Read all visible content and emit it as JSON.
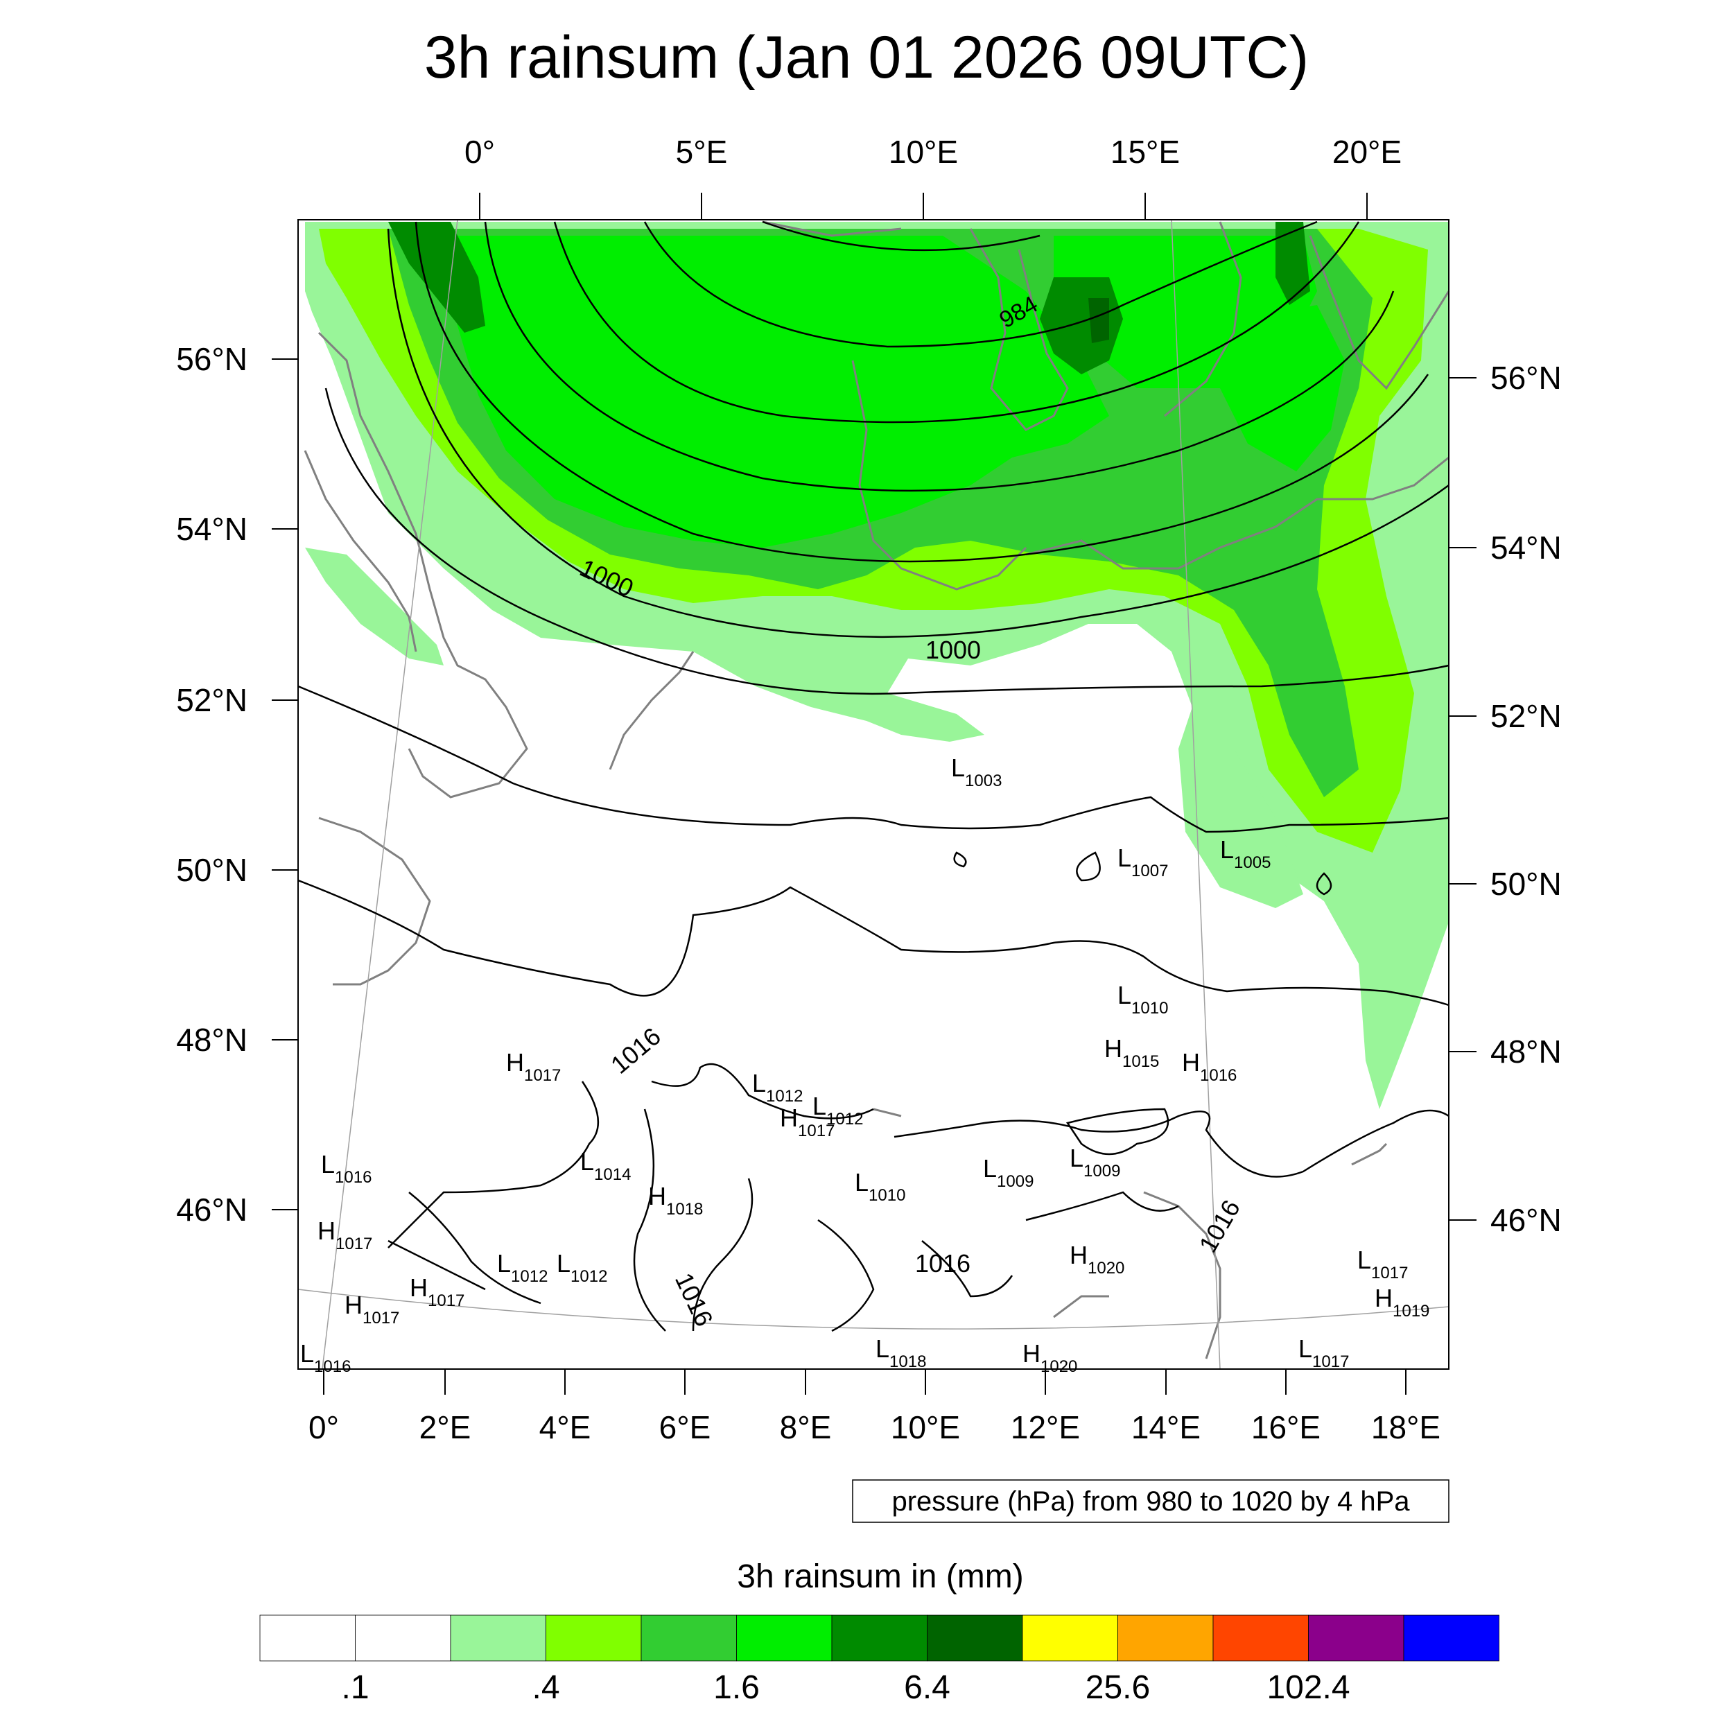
{
  "title": "3h rainsum (Jan 01 2026 09UTC)",
  "top_lon_labels": [
    "0°",
    "5°E",
    "10°E",
    "15°E",
    "20°E"
  ],
  "left_lat_labels": [
    "56°N",
    "54°N",
    "52°N",
    "50°N",
    "48°N",
    "46°N"
  ],
  "right_lat_labels": [
    "56°N",
    "54°N",
    "52°N",
    "50°N",
    "48°N",
    "46°N"
  ],
  "bottom_lon_labels": [
    "0°",
    "2°E",
    "4°E",
    "6°E",
    "8°E",
    "10°E",
    "12°E",
    "14°E",
    "16°E",
    "18°E"
  ],
  "contour_labels": [
    "984",
    "1000",
    "1000",
    "1016",
    "1016",
    "1016",
    "1016"
  ],
  "pressure_note": "pressure (hPa) from 980 to 1020 by 4 hPa",
  "centers": [
    {
      "letter": "L",
      "value": "1003"
    },
    {
      "letter": "L",
      "value": "1007"
    },
    {
      "letter": "L",
      "value": "1005"
    },
    {
      "letter": "L",
      "value": "1010"
    },
    {
      "letter": "H",
      "value": "1015"
    },
    {
      "letter": "H",
      "value": "1016"
    },
    {
      "letter": "H",
      "value": "1017"
    },
    {
      "letter": "L",
      "value": "1012"
    },
    {
      "letter": "L",
      "value": "1012"
    },
    {
      "letter": "H",
      "value": "1017"
    },
    {
      "letter": "L",
      "value": "1016"
    },
    {
      "letter": "L",
      "value": "1014"
    },
    {
      "letter": "H",
      "value": "1018"
    },
    {
      "letter": "L",
      "value": "1010"
    },
    {
      "letter": "L",
      "value": "1009"
    },
    {
      "letter": "L",
      "value": "1009"
    },
    {
      "letter": "H",
      "value": "1017"
    },
    {
      "letter": "L",
      "value": "1012"
    },
    {
      "letter": "L",
      "value": "1012"
    },
    {
      "letter": "H",
      "value": "1017"
    },
    {
      "letter": "H",
      "value": "1017"
    },
    {
      "letter": "H",
      "value": "1020"
    },
    {
      "letter": "L",
      "value": "1017"
    },
    {
      "letter": "H",
      "value": "1019"
    },
    {
      "letter": "L",
      "value": "1016"
    },
    {
      "letter": "L",
      "value": "1018"
    },
    {
      "letter": "H",
      "value": "1020"
    },
    {
      "letter": "L",
      "value": "1017"
    }
  ],
  "colorbar": {
    "title": "3h rainsum in (mm)",
    "colors": [
      "#ffffff",
      "#ffffff",
      "#99f599",
      "#80ff00",
      "#32cd32",
      "#00ee00",
      "#008b00",
      "#006400",
      "#ffff00",
      "#ffa500",
      "#ff4500",
      "#8b008b",
      "#0000ff"
    ],
    "tick_labels": [
      ".1",
      ".4",
      "1.6",
      "6.4",
      "25.6",
      "102.4"
    ]
  }
}
